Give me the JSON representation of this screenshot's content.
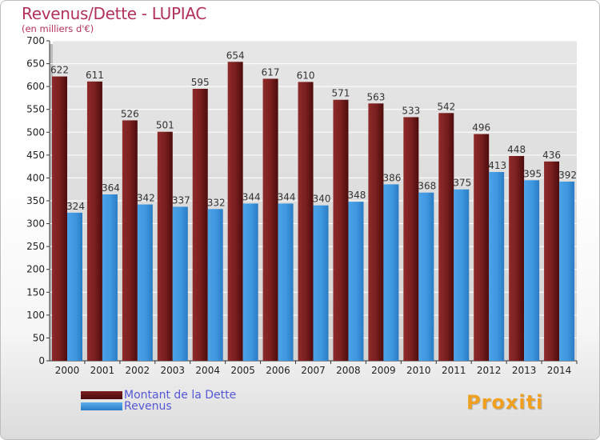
{
  "header": {
    "title": "Revenus/Dette - LUPIAC",
    "subtitle": "(en milliers d'€)"
  },
  "legend": [
    {
      "label": "Montant de la Dette",
      "color": "#6b1b1b"
    },
    {
      "label": "Revenus",
      "color": "#3d9ae0"
    }
  ],
  "logo": {
    "text": "Proxiti"
  },
  "colors": {
    "debt": "#7a1f1f",
    "revenue": "#4aa3e8",
    "title": "#b2315c"
  },
  "chart_data": {
    "type": "bar",
    "title": "Revenus/Dette - LUPIAC",
    "ylabel": "(en milliers d'€)",
    "ylim": [
      0,
      700
    ],
    "yticks": [
      0,
      50,
      100,
      150,
      200,
      250,
      300,
      350,
      400,
      450,
      500,
      550,
      600,
      650,
      700
    ],
    "categories": [
      "2000",
      "2001",
      "2002",
      "2003",
      "2004",
      "2005",
      "2006",
      "2007",
      "2008",
      "2009",
      "2010",
      "2011",
      "2012",
      "2013",
      "2014"
    ],
    "series": [
      {
        "name": "Montant de la Dette",
        "values": [
          622,
          611,
          526,
          501,
          595,
          654,
          617,
          610,
          571,
          563,
          533,
          542,
          496,
          448,
          436
        ]
      },
      {
        "name": "Revenus",
        "values": [
          324,
          364,
          342,
          337,
          332,
          344,
          344,
          340,
          348,
          386,
          368,
          375,
          413,
          395,
          392
        ]
      }
    ],
    "grid": true,
    "legend_position": "bottom-left"
  }
}
